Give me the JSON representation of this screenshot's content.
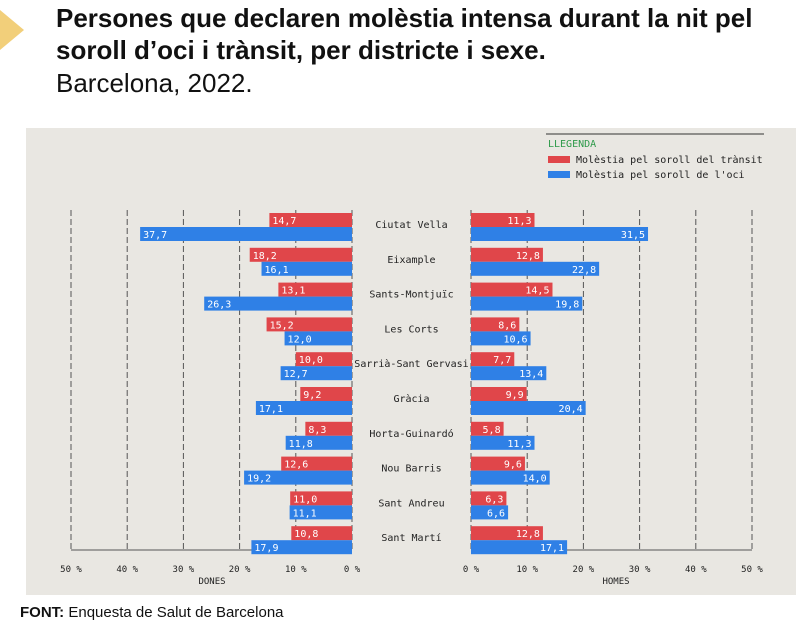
{
  "header": {
    "title": "Persones que declaren molèstia intensa durant la nit pel soroll d’oci i trànsit, per districte i sexe.",
    "subtitle": "Barcelona, 2022."
  },
  "source": {
    "label": "FONT:",
    "text": "Enquesta de Salut de Barcelona"
  },
  "colors": {
    "traffic": "#e0464a",
    "leisure": "#2f80e6",
    "background": "#e9e7e2",
    "gridline": "#555555"
  },
  "chart_data": {
    "type": "bar",
    "orientation": "horizontal-butterfly",
    "categories": [
      "Ciutat Vella",
      "Eixample",
      "Sants-Montjuïc",
      "Les Corts",
      "Sarrià-Sant Gervasi",
      "Gràcia",
      "Horta-Guinardó",
      "Nou Barris",
      "Sant Andreu",
      "Sant Martí"
    ],
    "legend": {
      "title": "LLEGENDA",
      "items": [
        "Molèstia pel soroll del trànsit",
        "Molèstia pel soroll de l'oci"
      ],
      "position": "top-right"
    },
    "panels": [
      {
        "label": "DONES",
        "direction": "left",
        "series": [
          {
            "name": "Molèstia pel soroll del trànsit",
            "values": [
              14.7,
              18.2,
              13.1,
              15.2,
              10.0,
              9.2,
              8.3,
              12.6,
              11.0,
              10.8
            ]
          },
          {
            "name": "Molèstia pel soroll de l'oci",
            "values": [
              37.7,
              16.1,
              26.3,
              12.0,
              12.7,
              17.1,
              11.8,
              19.2,
              11.1,
              17.9
            ]
          }
        ]
      },
      {
        "label": "HOMES",
        "direction": "right",
        "series": [
          {
            "name": "Molèstia pel soroll del trànsit",
            "values": [
              11.3,
              12.8,
              14.5,
              8.6,
              7.7,
              9.9,
              5.8,
              9.6,
              6.3,
              12.8
            ]
          },
          {
            "name": "Molèstia pel soroll de l'oci",
            "values": [
              31.5,
              22.8,
              19.8,
              10.6,
              13.4,
              20.4,
              11.3,
              14.0,
              6.6,
              17.1
            ]
          }
        ]
      }
    ],
    "xlim": [
      0,
      50
    ],
    "ticks": [
      0,
      10,
      20,
      30,
      40,
      50
    ],
    "tick_suffix": " %",
    "grid": true
  }
}
